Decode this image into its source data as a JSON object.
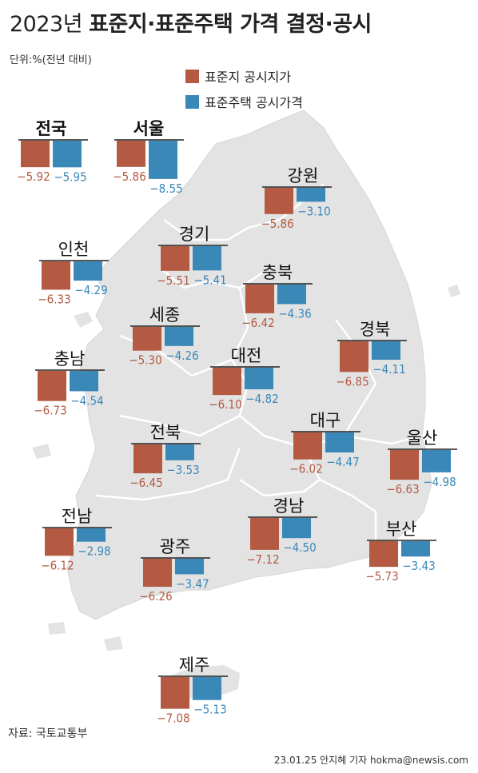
{
  "title": {
    "year": "2023년",
    "main": "표준지·표준주택 가격 결정·공시"
  },
  "unit": "단위:%(전년 대비)",
  "legend": [
    {
      "label": "표준지 공시지가",
      "color": "#b45a42"
    },
    {
      "label": "표준주택 공시가격",
      "color": "#3a88b8"
    }
  ],
  "source": "자료: 국토교통부",
  "credit": "23.01.25 안지혜 기자 hokma@newsis.com",
  "colors": {
    "land": "#b45a42",
    "house": "#3a88b8",
    "map": "#e3e3e3",
    "map_border": "#ffffff"
  },
  "chart_data": {
    "type": "bar",
    "series": [
      {
        "name": "표준지 공시지가"
      },
      {
        "name": "표준주택 공시가격"
      }
    ],
    "regions": [
      {
        "name": "전국",
        "land": -5.92,
        "house": -5.95
      },
      {
        "name": "서울",
        "land": -5.86,
        "house": -8.55
      },
      {
        "name": "강원",
        "land": -5.86,
        "house": -3.1
      },
      {
        "name": "인천",
        "land": -6.33,
        "house": -4.29
      },
      {
        "name": "경기",
        "land": -5.51,
        "house": -5.41
      },
      {
        "name": "충북",
        "land": -6.42,
        "house": -4.36
      },
      {
        "name": "세종",
        "land": -5.3,
        "house": -4.26
      },
      {
        "name": "경북",
        "land": -6.85,
        "house": -4.11
      },
      {
        "name": "충남",
        "land": -6.73,
        "house": -4.54
      },
      {
        "name": "대전",
        "land": -6.1,
        "house": -4.82
      },
      {
        "name": "전북",
        "land": -6.45,
        "house": -3.53
      },
      {
        "name": "대구",
        "land": -6.02,
        "house": -4.47
      },
      {
        "name": "울산",
        "land": -6.63,
        "house": -4.98
      },
      {
        "name": "경남",
        "land": -7.12,
        "house": -4.5
      },
      {
        "name": "전남",
        "land": -6.12,
        "house": -2.98
      },
      {
        "name": "부산",
        "land": -5.73,
        "house": -3.43
      },
      {
        "name": "광주",
        "land": -6.26,
        "house": -3.47
      },
      {
        "name": "제주",
        "land": -7.08,
        "house": -5.13
      }
    ]
  }
}
